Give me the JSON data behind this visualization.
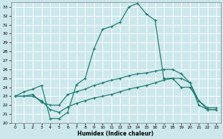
{
  "xlabel": "Humidex (Indice chaleur)",
  "ylabel": "",
  "background_color": "#cce8ec",
  "grid_color": "#ffffff",
  "line_color": "#1a7a6e",
  "xlim": [
    -0.5,
    23.5
  ],
  "ylim": [
    20,
    33.5
  ],
  "xticks": [
    0,
    1,
    2,
    3,
    4,
    5,
    6,
    7,
    8,
    9,
    10,
    11,
    12,
    13,
    14,
    15,
    16,
    17,
    18,
    19,
    20,
    21,
    22,
    23
  ],
  "yticks": [
    20,
    21,
    22,
    23,
    24,
    25,
    26,
    27,
    28,
    29,
    30,
    31,
    32,
    33
  ],
  "curve1_x": [
    0,
    1,
    2,
    3,
    4,
    5,
    6,
    7,
    8,
    9,
    10,
    11,
    12,
    13,
    14,
    15,
    16,
    17,
    18,
    19,
    20,
    21,
    22,
    23
  ],
  "curve1_y": [
    23.0,
    23.5,
    23.8,
    24.2,
    20.5,
    20.5,
    21.2,
    24.3,
    25.0,
    28.3,
    30.5,
    30.8,
    31.3,
    33.0,
    33.4,
    32.2,
    31.5,
    25.0,
    25.0,
    24.0,
    24.0,
    22.5,
    21.7,
    21.7
  ],
  "curve2_x": [
    0,
    1,
    2,
    3,
    4,
    5,
    6,
    7,
    8,
    9,
    10,
    11,
    12,
    13,
    14,
    15,
    16,
    17,
    18,
    19,
    20,
    21,
    22,
    23
  ],
  "curve2_y": [
    23.0,
    23.0,
    23.2,
    22.3,
    22.0,
    22.0,
    23.2,
    23.5,
    23.8,
    24.2,
    24.5,
    24.8,
    25.0,
    25.3,
    25.5,
    25.6,
    25.8,
    26.0,
    26.0,
    25.5,
    24.5,
    22.5,
    21.5,
    21.5
  ],
  "curve3_x": [
    0,
    1,
    2,
    3,
    4,
    5,
    6,
    7,
    8,
    9,
    10,
    11,
    12,
    13,
    14,
    15,
    16,
    17,
    18,
    19,
    20,
    21,
    22,
    23
  ],
  "curve3_y": [
    23.0,
    23.0,
    23.0,
    22.5,
    21.5,
    21.2,
    21.8,
    22.2,
    22.5,
    22.8,
    23.0,
    23.2,
    23.5,
    23.8,
    24.0,
    24.2,
    24.5,
    24.8,
    25.0,
    25.0,
    24.5,
    22.0,
    21.5,
    21.5
  ]
}
